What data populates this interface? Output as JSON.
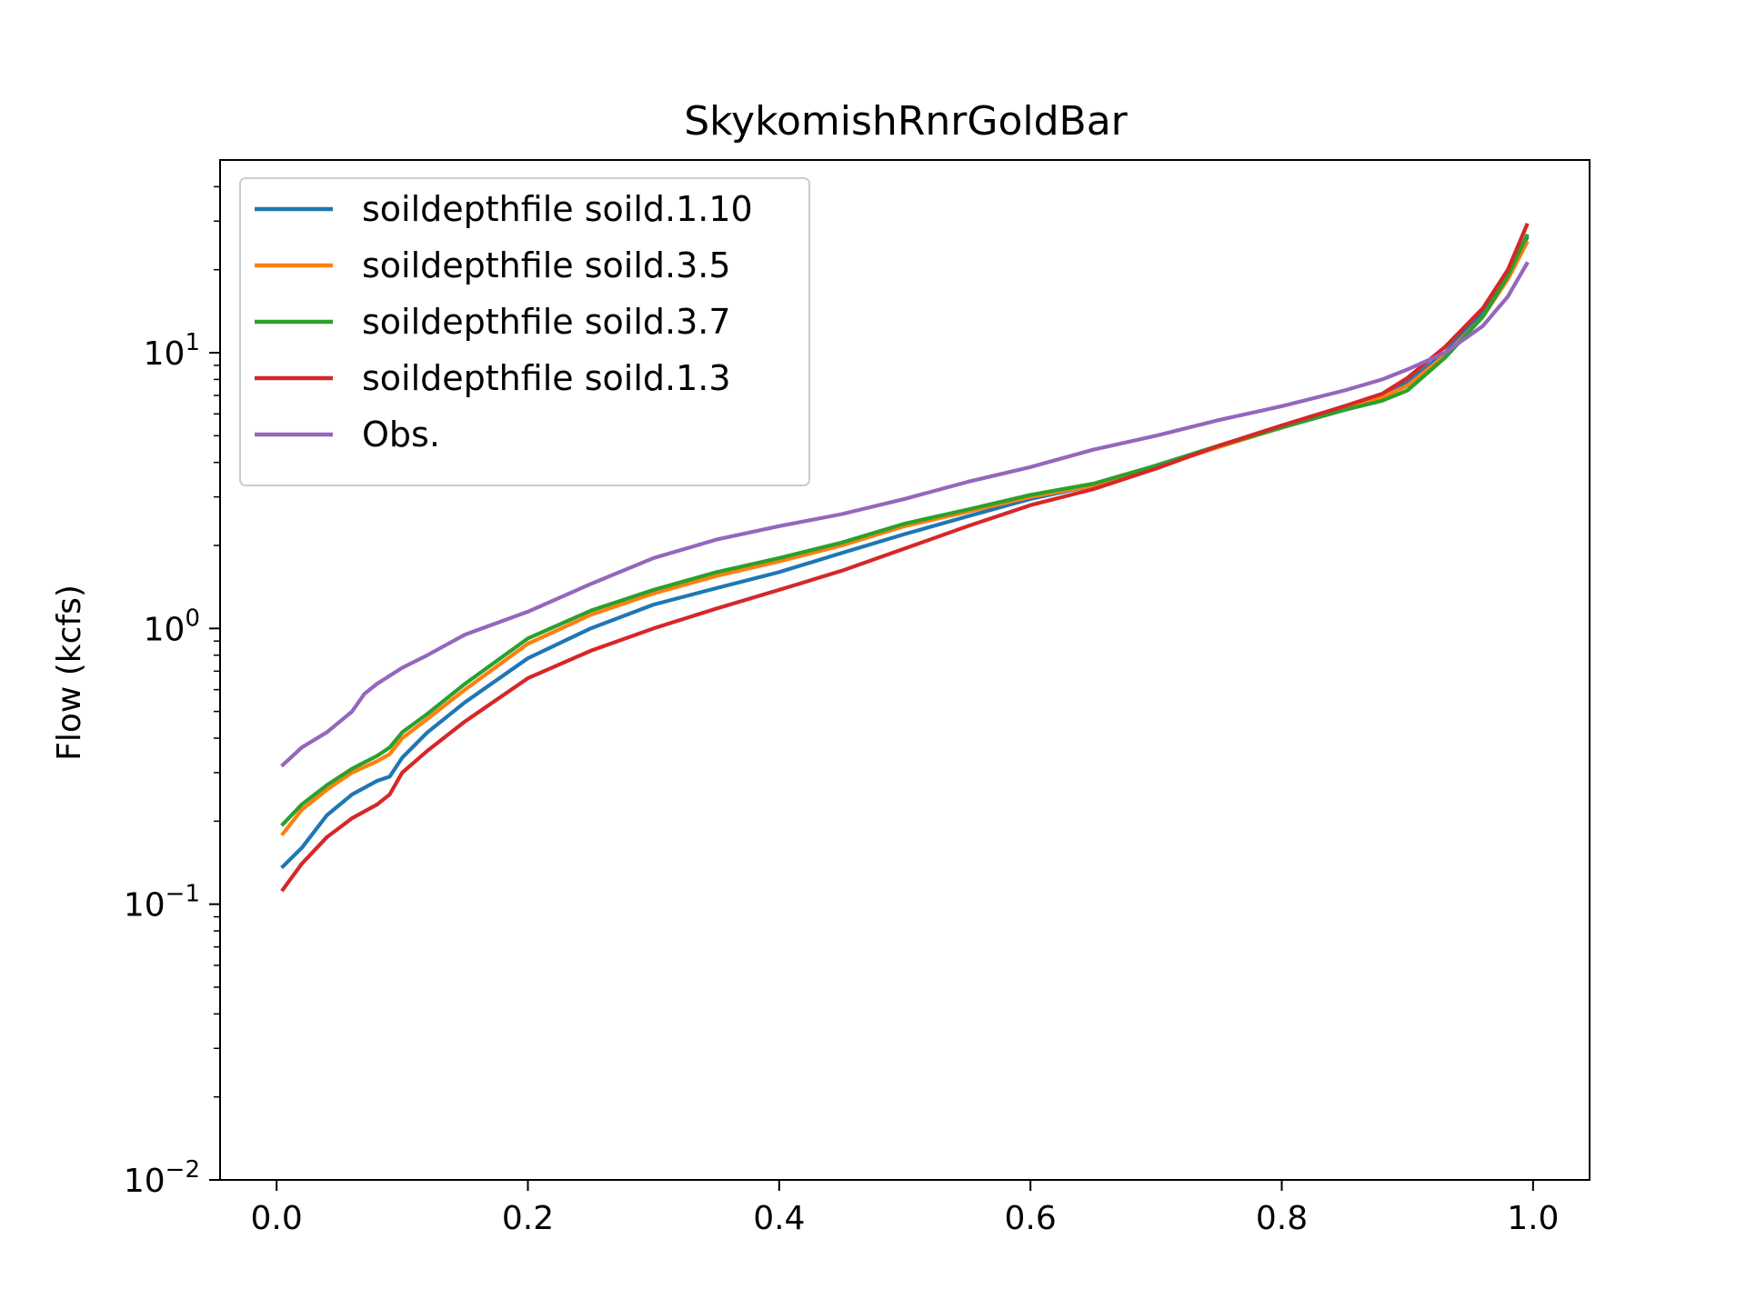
{
  "chart_data": {
    "type": "line",
    "title": "SkykomishRnrGoldBar",
    "xlabel": "",
    "ylabel": "Flow (kcfs)",
    "yscale": "log",
    "xlim": [
      -0.045,
      1.045
    ],
    "ylim": [
      0.01,
      50
    ],
    "grid": false,
    "legend_position": "top-left",
    "xticks": [
      0.0,
      0.2,
      0.4,
      0.6,
      0.8,
      1.0
    ],
    "xtick_labels": [
      "0.0",
      "0.2",
      "0.4",
      "0.6",
      "0.8",
      "1.0"
    ],
    "yticks": [
      0.01,
      0.1,
      1,
      10
    ],
    "ytick_labels": [
      {
        "base": "10",
        "exp": "−2"
      },
      {
        "base": "10",
        "exp": "−1"
      },
      {
        "base": "10",
        "exp": "0"
      },
      {
        "base": "10",
        "exp": "1"
      }
    ],
    "series": [
      {
        "name": "soildepthfile soild.1.10",
        "color": "#1f77b4",
        "x": [
          0.005,
          0.02,
          0.04,
          0.06,
          0.08,
          0.09,
          0.1,
          0.12,
          0.15,
          0.2,
          0.25,
          0.3,
          0.35,
          0.4,
          0.45,
          0.5,
          0.55,
          0.6,
          0.65,
          0.7,
          0.75,
          0.8,
          0.85,
          0.88,
          0.9,
          0.93,
          0.96,
          0.98,
          0.995
        ],
        "y": [
          0.137,
          0.16,
          0.21,
          0.25,
          0.28,
          0.29,
          0.34,
          0.42,
          0.54,
          0.78,
          1.0,
          1.22,
          1.4,
          1.6,
          1.88,
          2.2,
          2.55,
          2.95,
          3.3,
          3.9,
          4.6,
          5.4,
          6.4,
          7.0,
          7.8,
          10.0,
          14.0,
          19.0,
          26.0
        ]
      },
      {
        "name": "soildepthfile soild.3.5",
        "color": "#ff7f0e",
        "x": [
          0.005,
          0.02,
          0.04,
          0.06,
          0.08,
          0.09,
          0.1,
          0.12,
          0.15,
          0.2,
          0.25,
          0.3,
          0.35,
          0.4,
          0.45,
          0.5,
          0.55,
          0.6,
          0.65,
          0.7,
          0.75,
          0.8,
          0.85,
          0.88,
          0.9,
          0.93,
          0.96,
          0.98,
          0.995
        ],
        "y": [
          0.18,
          0.22,
          0.26,
          0.3,
          0.33,
          0.35,
          0.4,
          0.47,
          0.6,
          0.88,
          1.12,
          1.34,
          1.55,
          1.75,
          2.0,
          2.35,
          2.65,
          3.0,
          3.3,
          3.85,
          4.55,
          5.35,
          6.3,
          6.9,
          7.6,
          9.8,
          13.5,
          18.5,
          25.0
        ]
      },
      {
        "name": "soildepthfile soild.3.7",
        "color": "#2ca02c",
        "x": [
          0.005,
          0.02,
          0.04,
          0.06,
          0.08,
          0.09,
          0.1,
          0.12,
          0.15,
          0.2,
          0.25,
          0.3,
          0.35,
          0.4,
          0.45,
          0.5,
          0.55,
          0.6,
          0.65,
          0.7,
          0.75,
          0.8,
          0.85,
          0.88,
          0.9,
          0.93,
          0.96,
          0.98,
          0.995
        ],
        "y": [
          0.195,
          0.23,
          0.27,
          0.31,
          0.345,
          0.37,
          0.42,
          0.49,
          0.63,
          0.92,
          1.16,
          1.38,
          1.6,
          1.8,
          2.05,
          2.4,
          2.7,
          3.05,
          3.35,
          3.9,
          4.6,
          5.35,
          6.2,
          6.7,
          7.3,
          9.6,
          13.5,
          19.0,
          26.5
        ]
      },
      {
        "name": "soildepthfile soild.1.3",
        "color": "#d62728",
        "x": [
          0.005,
          0.02,
          0.04,
          0.06,
          0.08,
          0.09,
          0.1,
          0.12,
          0.15,
          0.2,
          0.25,
          0.3,
          0.35,
          0.4,
          0.45,
          0.5,
          0.55,
          0.6,
          0.65,
          0.7,
          0.75,
          0.8,
          0.85,
          0.88,
          0.9,
          0.93,
          0.96,
          0.98,
          0.995
        ],
        "y": [
          0.113,
          0.14,
          0.175,
          0.205,
          0.23,
          0.25,
          0.3,
          0.36,
          0.46,
          0.66,
          0.83,
          1.0,
          1.18,
          1.38,
          1.62,
          1.95,
          2.35,
          2.8,
          3.2,
          3.8,
          4.6,
          5.45,
          6.4,
          7.1,
          8.1,
          10.5,
          14.5,
          20.0,
          29.0
        ]
      },
      {
        "name": "Obs.",
        "color": "#9467bd",
        "x": [
          0.005,
          0.02,
          0.04,
          0.06,
          0.07,
          0.08,
          0.1,
          0.12,
          0.15,
          0.2,
          0.25,
          0.3,
          0.35,
          0.4,
          0.45,
          0.5,
          0.55,
          0.6,
          0.65,
          0.7,
          0.75,
          0.8,
          0.85,
          0.88,
          0.9,
          0.93,
          0.96,
          0.98,
          0.995
        ],
        "y": [
          0.32,
          0.37,
          0.42,
          0.5,
          0.58,
          0.63,
          0.72,
          0.8,
          0.95,
          1.15,
          1.45,
          1.8,
          2.1,
          2.35,
          2.6,
          2.95,
          3.4,
          3.85,
          4.45,
          5.0,
          5.7,
          6.4,
          7.3,
          8.0,
          8.7,
          10.0,
          12.5,
          16.0,
          21.0
        ]
      }
    ]
  }
}
